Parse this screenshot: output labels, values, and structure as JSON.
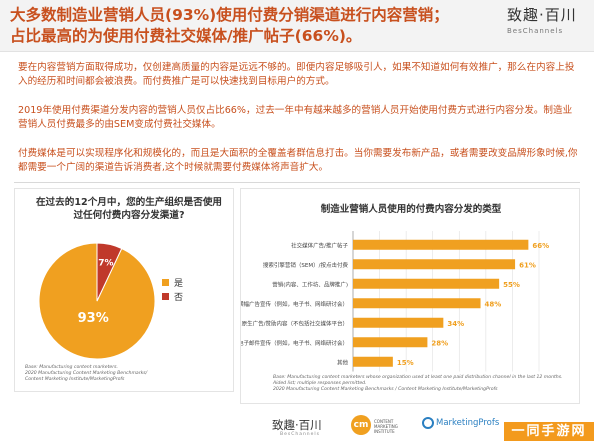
{
  "header": {
    "title_line1": "大多数制造业营销人员(93%)使用付费分销渠道进行内容营销；",
    "title_line2": "占比最高的为使用付费社交媒体/推广帖子(66%)。",
    "logo_cn": "致趣·百川",
    "logo_en": "BesChannels"
  },
  "body": {
    "p1": "要在内容营销方面取得成功，仅创建高质量的内容是远远不够的。即便内容足够吸引人，如果不知道如何有效推广，那么在内容上投入的经历和时间都会被浪费。而付费推广是可以快速找到目标用户的方式。",
    "p2": "2019年使用付费渠道分发内容的营销人员仅占比66%，过去一年中有越来越多的营销人员开始使用付费方式进行内容分发。制造业营销人员付费最多的由SEM变成付费社交媒体。",
    "p3": "付费媒体是可以实现程序化和规模化的，而且是大面积的全覆盖者群信息打击。当你需要发布新产品，或者需要改变品牌形象时候,你都需要一个广阔的渠道告诉消费者,这个时候就需要付费媒体将声音扩大。"
  },
  "left_panel": {
    "title_line1": "在过去的12个月中，您的生产组织是否使用",
    "title_line2": "过任何付费内容分发渠道?",
    "footnote_line1": "Base: Manufacturing content marketers.",
    "footnote_line2": "2020 Manufacturing Content Marketing Benchmarks/",
    "footnote_line3": "Content Marketing Institute/MarketingProfs"
  },
  "right_panel": {
    "footnote_line1": "Base: Manufacturing content marketers whose organization used at least one paid distribution channel in the last 12 months.",
    "footnote_line2": "Aided list; multiple responses permitted.",
    "footnote_line3": "2020 Manufacturing Content Marketing Benchmarks / Content Marketing Institute/MarketingProfs"
  },
  "chart_data": [
    {
      "type": "pie",
      "title": "",
      "slices": [
        {
          "label": "是",
          "value": 93,
          "color": "#f0a020"
        },
        {
          "label": "否",
          "value": 7,
          "color": "#c0392b"
        }
      ],
      "slice_labels": [
        "93%",
        "7%"
      ],
      "legend_position": "right"
    },
    {
      "type": "bar",
      "orientation": "horizontal",
      "title": "制造业营销人员使用的付费内容分发的类型",
      "categories": [
        "社交媒体广告/推广帖子",
        "搜索引擎营销（SEM）/按点击付费",
        "营销(内容、工作坊、品牌推广)",
        "横幅广告宣传（例如，电子书、网络研讨会）",
        "原生广告/赞助内容（不包括社交媒体平台）",
        "合作伙伴电子邮件宣传（例如，电子书、网络研讨会）",
        "其他"
      ],
      "values": [
        66,
        61,
        55,
        48,
        34,
        28,
        15
      ],
      "value_labels": [
        "66%",
        "61%",
        "55%",
        "48%",
        "34%",
        "28%",
        "15%"
      ],
      "xlim": [
        0,
        70
      ],
      "grid": true,
      "color": "#f0a020"
    }
  ],
  "footer": {
    "logo1_cn": "致趣·百川",
    "logo1_en": "BesChannels",
    "logo2_mark": "cm",
    "logo2_text": "CONTENT MARKETING INSTITUTE",
    "logo3_text": "MarketingProfs",
    "watermark": "一同手游网"
  }
}
